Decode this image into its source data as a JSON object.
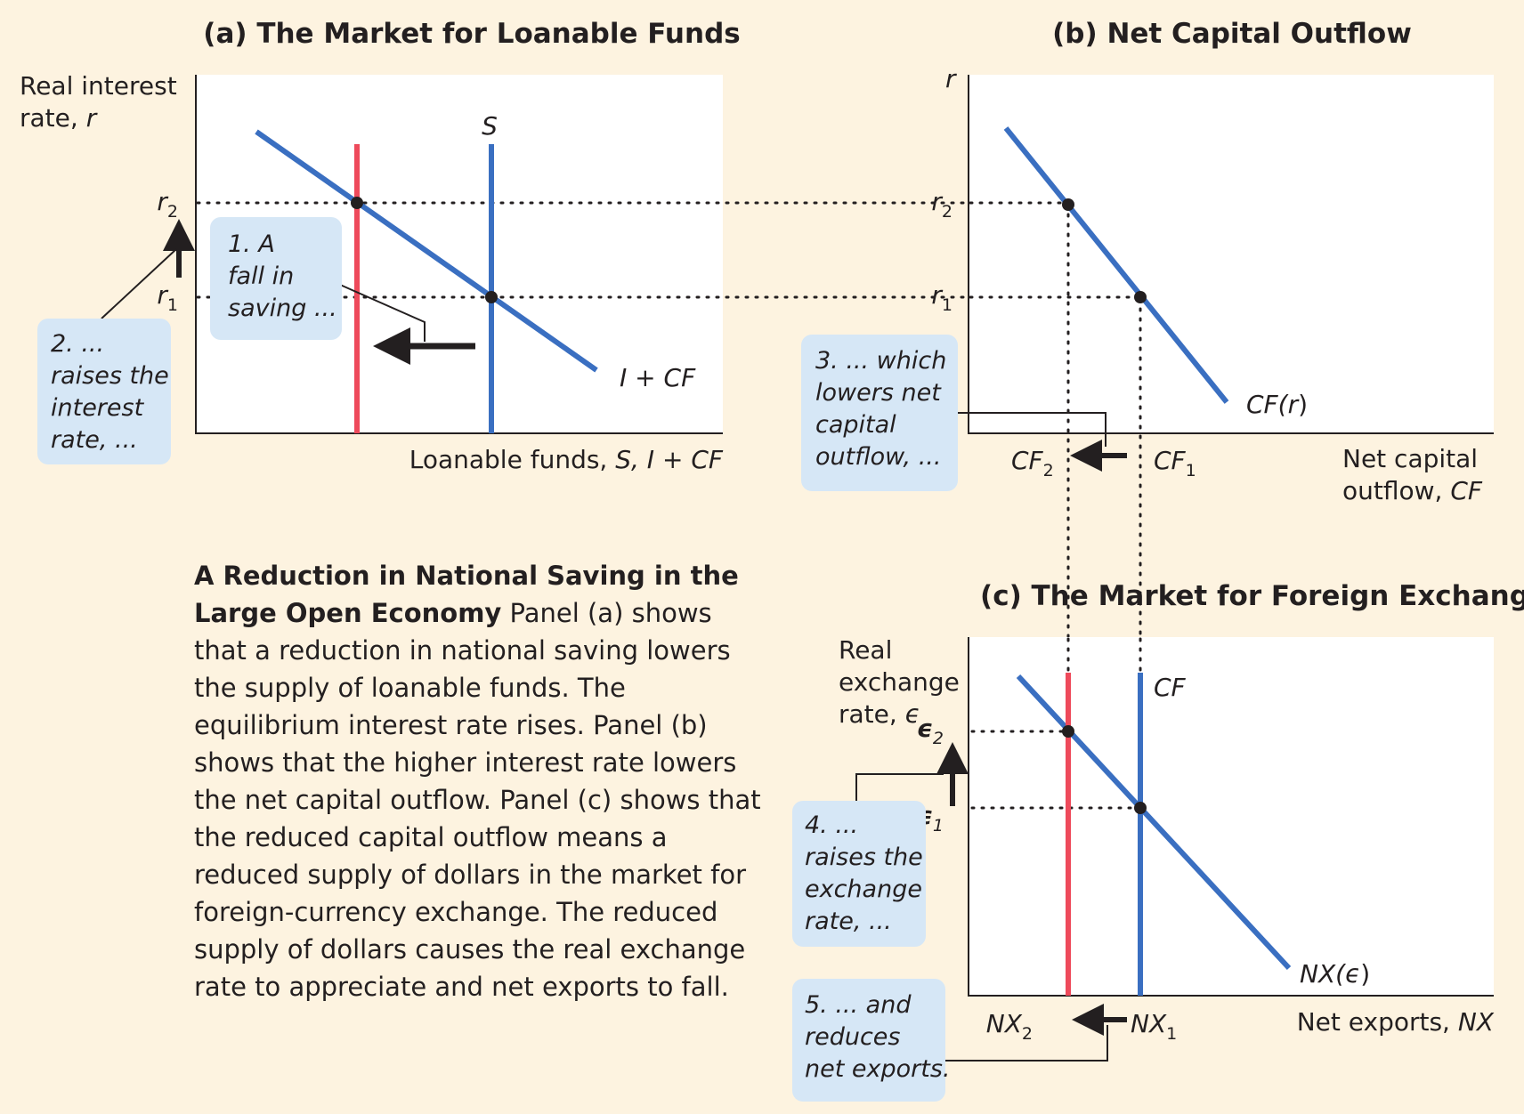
{
  "colors": {
    "background": "#fdf3e0",
    "panel": "#ffffff",
    "curve_blue": "#3a6fc1",
    "curve_red": "#ee4a5b",
    "callout": "#d6e7f6",
    "ink": "#231f20"
  },
  "panel_a": {
    "title": "(a) The Market for Loanable Funds",
    "ylabel_line1": "Real interest",
    "ylabel_line2": "rate, ",
    "ylabel_var": "r",
    "xlabel_prefix": "Loanable funds, ",
    "xlabel_vars": "S, I + CF",
    "supply_label": "S",
    "demand_label": "I + CF",
    "r2": "r",
    "r2_sub": "2",
    "r1": "r",
    "r1_sub": "1",
    "note1": [
      "1. A",
      "fall in",
      "saving ..."
    ],
    "note2": [
      "2. ...",
      "raises the",
      "interest",
      "rate, ..."
    ]
  },
  "panel_b": {
    "title": "(b) Net Capital Outflow",
    "ylabel": "r",
    "r2": "r",
    "r2_sub": "2",
    "r1": "r",
    "r1_sub": "1",
    "curve_label": "CF(r)",
    "cf2": "CF",
    "cf2_sub": "2",
    "cf1": "CF",
    "cf1_sub": "1",
    "xlabel_line1": "Net capital",
    "xlabel_line2_prefix": "outflow, ",
    "xlabel_var": "CF",
    "note3": [
      "3. ... which",
      "lowers net",
      "capital",
      "outflow, ..."
    ]
  },
  "panel_c": {
    "title": "(c) The Market for Foreign Exchange",
    "ylabel_line1": "Real",
    "ylabel_line2": "exchange",
    "ylabel_line3": "rate, ",
    "ylabel_var": "ϵ",
    "e2": "ϵ",
    "e2_sub": "2",
    "e1": "ϵ",
    "e1_sub": "1",
    "supply_label": "CF",
    "curve_label": "NX(ϵ)",
    "nx2": "NX",
    "nx2_sub": "2",
    "nx1": "NX",
    "nx1_sub": "1",
    "xlabel_prefix": "Net exports, ",
    "xlabel_var": "NX",
    "note4": [
      "4. ...",
      "raises the",
      "exchange",
      "rate, ..."
    ],
    "note5": [
      "5. ... and",
      "reduces",
      "net exports."
    ]
  },
  "caption": {
    "title": "A Reduction in National Saving in the Large Open Economy",
    "body": "Panel (a) shows that a reduction in national saving lowers the supply of loanable funds. The equilibrium interest rate rises. Panel (b) shows that the higher interest rate lowers the net capital outflow. Panel (c) shows that the reduced capital outflow means a reduced supply of dollars in the market for foreign-currency exchange. The reduced supply of dollars causes the real exchange rate to appreciate and net exports to fall."
  }
}
